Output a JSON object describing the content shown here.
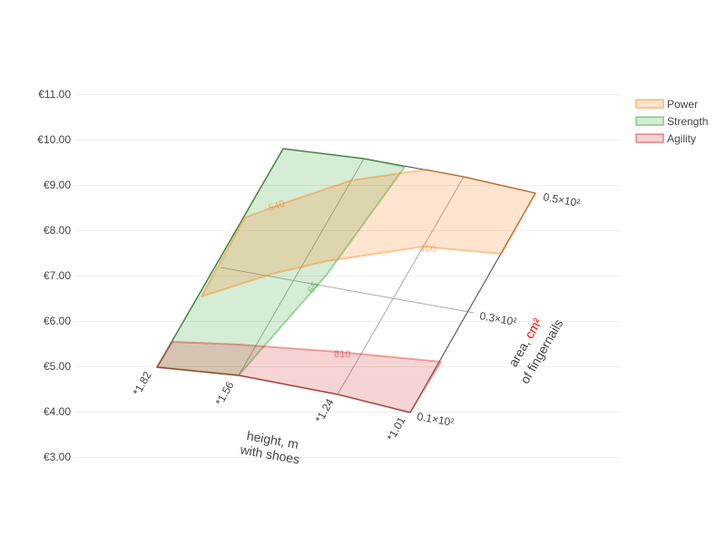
{
  "chart_data": {
    "type": "area",
    "y_axis": {
      "ticks": [
        "€11.00",
        "€10.00",
        "€9.00",
        "€8.00",
        "€7.00",
        "€6.00",
        "€5.00",
        "€4.00",
        "€3.00"
      ],
      "range": [
        3,
        11
      ],
      "grid": true
    },
    "x_axis": {
      "title_line1": "height, m",
      "title_line2": "with shoes",
      "ticks": [
        "*1.82",
        "*1.56",
        "*1.24",
        "*1.01"
      ]
    },
    "b_axis": {
      "title_prefix": "area, ",
      "title_unit": "cm²",
      "title_line2": "of fingernails",
      "ticks": [
        "0.1×10²",
        "0.3×10²",
        "0.5×10²"
      ]
    },
    "series": [
      {
        "name": "Power",
        "color": "#ff7f0e",
        "annotation": "400",
        "annotation2": "540"
      },
      {
        "name": "Strength",
        "color": "#2ca02c",
        "annotation": "65"
      },
      {
        "name": "Agility",
        "color": "#d62728",
        "annotation": "810"
      }
    ],
    "legend": {
      "placement": "top-right"
    }
  }
}
